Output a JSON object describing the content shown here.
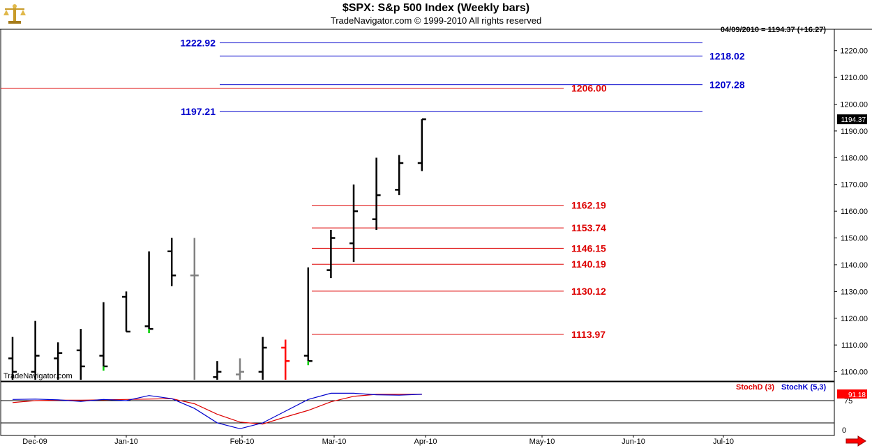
{
  "header": {
    "title": "$SPX:  S&p 500 Index  (Weekly bars)",
    "subtitle": "TradeNavigator.com © 1999-2010 All rights reserved",
    "readout": "04/09/2010 = 1194.37 (+16.27)",
    "watermark": "TradeNavigator.com"
  },
  "colors": {
    "background": "#ffffff",
    "bar": "#000000",
    "bar_gray": "#808080",
    "bar_red": "#ff0000",
    "close_green": "#00cc00",
    "resistance": "#0000cc",
    "support": "#dd0000",
    "stoch_d": "#dd0000",
    "stoch_k": "#0000cc",
    "last_price_bg": "#000000"
  },
  "icons": {
    "logo": "brass-scale-icon",
    "scroll": "red-right-arrow-icon"
  },
  "chart_data": [
    {
      "type": "bar",
      "subtype": "ohlc",
      "title": "$SPX:  S&p 500 Index  (Weekly bars)",
      "ylim": [
        1097,
        1232
      ],
      "y_ticks": [
        "1100.00",
        "1110.00",
        "1120.00",
        "1130.00",
        "1140.00",
        "1150.00",
        "1160.00",
        "1170.00",
        "1180.00",
        "1190.00",
        "1200.00",
        "1210.00",
        "1220.00"
      ],
      "last_price_label": "1194.37",
      "x_ticks": [
        "Dec-09",
        "Jan-10",
        "Feb-10",
        "Mar-10",
        "Apr-10",
        "May-10",
        "Jun-10",
        "Jul-10"
      ],
      "bars": [
        {
          "date": "2009-12-04",
          "open": 1105,
          "high": 1113,
          "low": 1097,
          "close": 1100,
          "color": "bar"
        },
        {
          "date": "2009-12-11",
          "open": 1100,
          "high": 1119,
          "low": 1097,
          "close": 1106,
          "color": "bar"
        },
        {
          "date": "2009-12-18",
          "open": 1105,
          "high": 1111,
          "low": 1097,
          "close": 1107,
          "color": "bar"
        },
        {
          "date": "2009-12-25",
          "open": 1108,
          "high": 1116,
          "low": 1097,
          "close": 1102,
          "color": "bar"
        },
        {
          "date": "2010-01-01",
          "open": 1106,
          "high": 1126,
          "low": 1102,
          "close": 1102,
          "color": "bar",
          "close_color": "close_green"
        },
        {
          "date": "2010-01-08",
          "open": 1128,
          "high": 1130,
          "low": 1115,
          "close": 1115,
          "color": "bar"
        },
        {
          "date": "2010-01-15",
          "open": 1117,
          "high": 1145,
          "low": 1116,
          "close": 1116,
          "color": "bar",
          "close_color": "close_green"
        },
        {
          "date": "2010-01-22",
          "open": 1145,
          "high": 1150,
          "low": 1132,
          "close": 1136,
          "color": "bar"
        },
        {
          "date": "2010-01-29",
          "open": 1136,
          "high": 1150,
          "low": 1097,
          "close": 1136,
          "color": "bar_gray"
        },
        {
          "date": "2010-02-05",
          "open": 1098,
          "high": 1104,
          "low": 1097,
          "close": 1100,
          "color": "bar"
        },
        {
          "date": "2010-02-12",
          "open": 1099,
          "high": 1105,
          "low": 1097,
          "close": 1100,
          "color": "bar_gray"
        },
        {
          "date": "2010-02-19",
          "open": 1100,
          "high": 1113,
          "low": 1097,
          "close": 1109,
          "color": "bar"
        },
        {
          "date": "2010-02-26",
          "open": 1109,
          "high": 1112,
          "low": 1097,
          "close": 1104,
          "color": "bar_red"
        },
        {
          "date": "2010-03-05",
          "open": 1106,
          "high": 1139,
          "low": 1104,
          "close": 1104,
          "color": "bar",
          "close_color": "close_green"
        },
        {
          "date": "2010-03-12",
          "open": 1138,
          "high": 1153,
          "low": 1135,
          "close": 1150,
          "color": "bar"
        },
        {
          "date": "2010-03-19",
          "open": 1148,
          "high": 1170,
          "low": 1141,
          "close": 1160,
          "color": "bar"
        },
        {
          "date": "2010-03-26",
          "open": 1157,
          "high": 1180,
          "low": 1153,
          "close": 1166,
          "color": "bar"
        },
        {
          "date": "2010-04-02",
          "open": 1168,
          "high": 1181,
          "low": 1166,
          "close": 1178,
          "color": "bar"
        },
        {
          "date": "2010-04-09",
          "open": 1178,
          "high": 1194.37,
          "low": 1175,
          "close": 1194.37,
          "color": "bar"
        }
      ],
      "resistance_levels": [
        {
          "value": 1222.92,
          "label": "1222.92",
          "label_side": "left"
        },
        {
          "value": 1218.02,
          "label": "1218.02",
          "label_side": "right"
        },
        {
          "value": 1207.28,
          "label": "1207.28",
          "label_side": "right"
        },
        {
          "value": 1197.21,
          "label": "1197.21",
          "label_side": "left"
        }
      ],
      "support_levels": [
        {
          "value": 1206.0,
          "label": "1206.00",
          "full_width": true
        },
        {
          "value": 1162.19,
          "label": "1162.19"
        },
        {
          "value": 1153.74,
          "label": "1153.74"
        },
        {
          "value": 1146.15,
          "label": "1146.15"
        },
        {
          "value": 1140.19,
          "label": "1140.19"
        },
        {
          "value": 1130.12,
          "label": "1130.12"
        },
        {
          "value": 1113.97,
          "label": "1113.97"
        }
      ]
    },
    {
      "type": "line",
      "title": "Stochastic",
      "ylim": [
        0,
        100
      ],
      "y_ticks": [
        "0",
        "75"
      ],
      "reference_lines": [
        75,
        25
      ],
      "last_value_label": "91.18",
      "series": [
        {
          "name": "StochD (3)",
          "color": "stoch_d",
          "values": [
            70,
            75,
            76,
            76,
            77,
            78,
            79,
            80,
            67,
            40,
            20,
            15,
            33,
            50,
            72,
            86,
            91,
            91,
            91
          ]
        },
        {
          "name": "StochK (5,3)",
          "color": "stoch_k",
          "values": [
            78,
            79,
            77,
            73,
            78,
            75,
            88,
            80,
            55,
            18,
            3,
            18,
            48,
            78,
            94,
            94,
            90,
            89,
            91.18
          ]
        }
      ]
    }
  ]
}
